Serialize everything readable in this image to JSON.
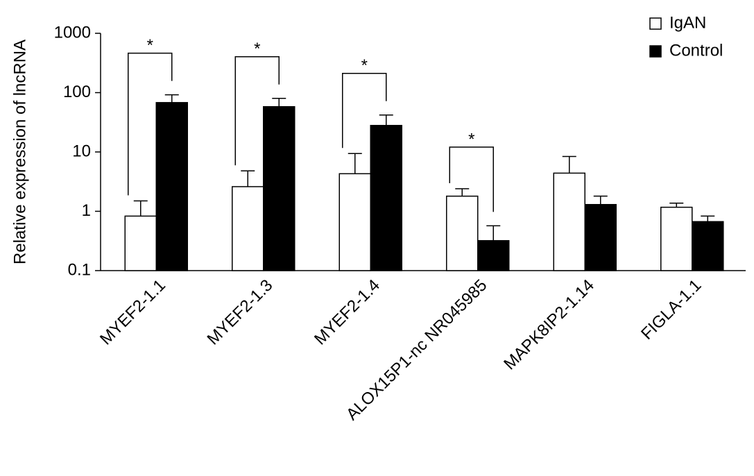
{
  "chart_data": {
    "type": "bar",
    "y_label": "Relative expression of lncRNA",
    "categories": [
      "MYEF2-1.1",
      "MYEF2-1.3",
      "MYEF2-1.4",
      "ALOX15P1-nc NR045985",
      "MAPK8IP2-1.14",
      "FIGLA-1.1"
    ],
    "series": [
      {
        "name": "IgAN",
        "color": "#ffffff",
        "values": [
          0.83,
          2.6,
          4.3,
          1.8,
          4.4,
          1.17
        ],
        "errors": [
          0.67,
          2.2,
          5.1,
          0.6,
          4,
          0.2
        ]
      },
      {
        "name": "Control",
        "color": "#000000",
        "values": [
          68,
          58,
          28,
          0.32,
          1.3,
          0.67
        ],
        "errors": [
          24,
          22,
          14,
          0.25,
          0.5,
          0.16
        ]
      }
    ],
    "significance": [
      "*",
      "*",
      "*",
      "*",
      null,
      null
    ],
    "ylim": [
      0.1,
      1000
    ],
    "yticks": [
      0.1,
      1,
      10,
      100,
      1000
    ],
    "log_scale": true,
    "legend": "top-right"
  }
}
